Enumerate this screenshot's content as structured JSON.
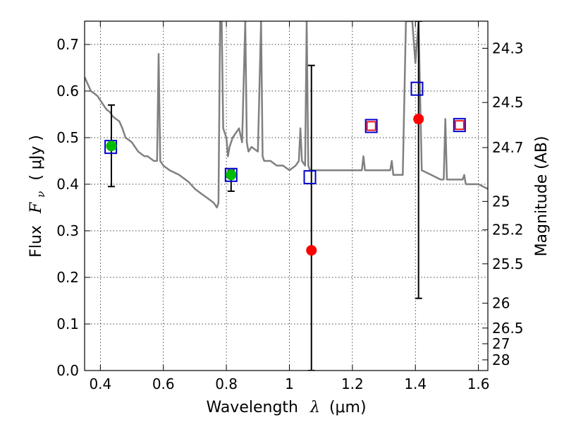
{
  "chart_data": {
    "type": "scatter",
    "xlabel_main": "Wavelength",
    "xlabel_symbol": "λ",
    "xlabel_unit": "(μm)",
    "ylabel_main": "Flux",
    "ylabel_symbol": "F",
    "ylabel_sub": "ν",
    "ylabel_unit": "( μJy )",
    "y2label": "Magnitude (AB)",
    "xlim": [
      0.35,
      1.63
    ],
    "ylim": [
      0.0,
      0.75
    ],
    "xticks": [
      "0.4",
      "0.6",
      "0.8",
      "1",
      "1.2",
      "1.4",
      "1.6"
    ],
    "yticks": [
      "0.0",
      "0.1",
      "0.2",
      "0.3",
      "0.4",
      "0.5",
      "0.6",
      "0.7"
    ],
    "y2ticks": [
      "24.3",
      "24.5",
      "24.7",
      "25",
      "25.2",
      "25.5",
      "26",
      "26.5",
      "27",
      "28"
    ],
    "grid": true,
    "colors": {
      "spectrum": "#808080",
      "model_square": "#0000cc",
      "detection": "#00bb00",
      "nondetection": "#ff0000",
      "errorbar": "#000000"
    },
    "series": [
      {
        "kind": "spectrum",
        "x": [
          0.35,
          0.36,
          0.37,
          0.38,
          0.39,
          0.4,
          0.41,
          0.42,
          0.43,
          0.44,
          0.45,
          0.46,
          0.47,
          0.48,
          0.49,
          0.5,
          0.51,
          0.52,
          0.53,
          0.54,
          0.55,
          0.56,
          0.57,
          0.58,
          0.585,
          0.59,
          0.6,
          0.62,
          0.65,
          0.68,
          0.7,
          0.72,
          0.74,
          0.76,
          0.77,
          0.775,
          0.78,
          0.785,
          0.79,
          0.8,
          0.805,
          0.81,
          0.82,
          0.83,
          0.84,
          0.85,
          0.86,
          0.865,
          0.87,
          0.88,
          0.9,
          0.91,
          0.915,
          0.92,
          0.94,
          0.96,
          0.98,
          1.0,
          1.02,
          1.03,
          1.035,
          1.04,
          1.05,
          1.055,
          1.06,
          1.065,
          1.07,
          1.1,
          1.15,
          1.2,
          1.23,
          1.235,
          1.24,
          1.28,
          1.32,
          1.325,
          1.33,
          1.35,
          1.36,
          1.37,
          1.38,
          1.39,
          1.4,
          1.41,
          1.42,
          1.45,
          1.48,
          1.49,
          1.495,
          1.5,
          1.52,
          1.55,
          1.555,
          1.56,
          1.58,
          1.6,
          1.63
        ],
        "y": [
          0.63,
          0.615,
          0.6,
          0.595,
          0.59,
          0.58,
          0.57,
          0.56,
          0.555,
          0.545,
          0.54,
          0.535,
          0.52,
          0.5,
          0.495,
          0.49,
          0.48,
          0.47,
          0.465,
          0.46,
          0.46,
          0.455,
          0.45,
          0.45,
          0.68,
          0.45,
          0.44,
          0.43,
          0.42,
          0.405,
          0.39,
          0.38,
          0.37,
          0.36,
          0.35,
          0.36,
          0.75,
          0.75,
          0.52,
          0.5,
          0.46,
          0.48,
          0.5,
          0.51,
          0.52,
          0.49,
          0.75,
          0.49,
          0.47,
          0.48,
          0.47,
          0.75,
          0.46,
          0.45,
          0.45,
          0.44,
          0.44,
          0.43,
          0.44,
          0.45,
          0.52,
          0.45,
          0.44,
          0.75,
          0.44,
          0.43,
          0.43,
          0.43,
          0.43,
          0.43,
          0.43,
          0.46,
          0.43,
          0.43,
          0.43,
          0.45,
          0.42,
          0.42,
          0.42,
          0.75,
          0.75,
          0.75,
          0.66,
          0.75,
          0.43,
          0.42,
          0.41,
          0.41,
          0.54,
          0.41,
          0.41,
          0.41,
          0.42,
          0.4,
          0.4,
          0.4,
          0.39
        ]
      },
      {
        "kind": "model_square",
        "x": [
          0.433,
          0.815,
          1.065,
          1.26,
          1.405,
          1.54
        ],
        "y": [
          0.48,
          0.42,
          0.415,
          0.525,
          0.605,
          0.527
        ]
      },
      {
        "kind": "detection",
        "x": [
          0.435,
          0.815
        ],
        "y": [
          0.482,
          0.42
        ],
        "yerr_low": [
          0.395,
          0.385
        ],
        "yerr_high": [
          0.57,
          0.43
        ]
      },
      {
        "kind": "nondetection",
        "x": [
          1.07,
          1.41
        ],
        "y": [
          0.258,
          0.54
        ],
        "yerr_low": [
          0.0,
          0.155
        ],
        "yerr_high": [
          0.655,
          0.75
        ]
      },
      {
        "kind": "open_marker",
        "x": [
          1.26,
          1.54
        ],
        "y": [
          0.525,
          0.527
        ]
      }
    ]
  }
}
